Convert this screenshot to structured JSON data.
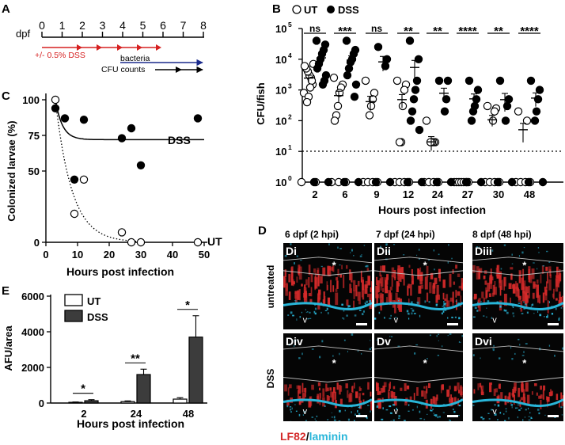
{
  "panel_a": {
    "letter": "A",
    "axis_label": "dpf",
    "ticks": [
      "0",
      "1",
      "2",
      "3",
      "4",
      "5",
      "6",
      "7",
      "8"
    ],
    "dss_label": "+/- 0.5% DSS",
    "bacteria_label": "bacteria",
    "cfu_label": "CFU counts",
    "colors": {
      "dss": "#d62020",
      "bacteria": "#1a2a8c",
      "cfu": "#000000"
    }
  },
  "panel_b": {
    "letter": "B",
    "legend_ut": "UT",
    "legend_dss": "DSS",
    "sig": [
      "ns",
      "***",
      "ns",
      "**",
      "**",
      "****",
      "**",
      "****"
    ],
    "ylabel": "CFU/fish",
    "xlabel": "Hours post infection",
    "yticks": [
      "10",
      "10",
      "10",
      "10",
      "10",
      "10"
    ],
    "yexp": [
      "0",
      "1",
      "2",
      "3",
      "4",
      "5"
    ]
  },
  "panel_c": {
    "letter": "C",
    "ylabel": "Colonized larvae (%)",
    "xlabel": "Hours post infection",
    "yticks": [
      "0",
      "50",
      "75",
      "100"
    ],
    "yticks_pos": [
      0,
      50,
      75,
      100
    ],
    "xticks": [
      "0",
      "10",
      "20",
      "30",
      "40",
      "50"
    ],
    "dss_label": "DSS",
    "ut_label": "UT"
  },
  "panel_d": {
    "letter": "D",
    "col_titles": [
      "6 dpf (2 hpi)",
      "7 dpf (24 hpi)",
      "8 dpf (48 hpi)"
    ],
    "row_labels": [
      "untreated",
      "DSS"
    ],
    "tile_labels": [
      "Di",
      "Dii",
      "Diii",
      "Div",
      "Dv",
      "Dvi"
    ],
    "caption_lf82": "LF82",
    "caption_sep": "/",
    "caption_laminin": "laminin",
    "colors": {
      "lf82": "#d42a2a",
      "laminin": "#29b6d9"
    }
  },
  "panel_e": {
    "letter": "E",
    "ylabel": "AFU/area",
    "xlabel": "Hours post infection",
    "legend_ut": "UT",
    "legend_dss": "DSS",
    "yticks": [
      "0",
      "2000",
      "4000",
      "6000"
    ],
    "sig": [
      "*",
      "**",
      "*"
    ]
  },
  "chart_data": [
    {
      "type": "scatter",
      "panel": "B",
      "categories": [
        "2",
        "6",
        "9",
        "12",
        "24",
        "27",
        "30",
        "48"
      ],
      "yscale": "log",
      "ylim": [
        1,
        100000
      ],
      "reference_line": 10,
      "series": [
        {
          "name": "UT",
          "marker": "open-circle",
          "values": [
            [
              800,
              1500,
              2500,
              3000,
              4000,
              5000,
              6000,
              7000,
              2000,
              1200,
              600,
              400,
              1,
              1
            ],
            [
              2500,
              1500,
              1200,
              800,
              300,
              150,
              100,
              1,
              1,
              1
            ],
            [
              2000,
              800,
              500,
              300,
              150,
              1,
              1,
              1,
              1
            ],
            [
              2000,
              1500,
              1000,
              300,
              20,
              20,
              1,
              1,
              1,
              1
            ],
            [
              100,
              20,
              20,
              20,
              20,
              1,
              1,
              1,
              1
            ],
            [
              1,
              1,
              1,
              1,
              1,
              1,
              1
            ],
            [
              300,
              250,
              200,
              100,
              1,
              1,
              1,
              1
            ],
            [
              200,
              100,
              1,
              1,
              1,
              1
            ]
          ]
        },
        {
          "name": "DSS",
          "marker": "filled-circle",
          "values": [
            [
              40000,
              30000,
              20000,
              15000,
              10000,
              7000,
              5000,
              3000,
              2000,
              1500,
              1,
              1
            ],
            [
              40000,
              20000,
              15000,
              10000,
              8000,
              5000,
              3000,
              1500,
              600,
              1,
              1
            ],
            [
              25000,
              10000,
              6000,
              1,
              1
            ],
            [
              40000,
              10000,
              2000,
              1000,
              500,
              200,
              100,
              50,
              1,
              1
            ],
            [
              2000,
              2000,
              500,
              200,
              1,
              1
            ],
            [
              2000,
              1000,
              500,
              300,
              200,
              100,
              1,
              1
            ],
            [
              2000,
              500,
              300,
              100,
              1,
              1
            ],
            [
              2000,
              1000,
              500,
              200,
              100,
              1,
              1
            ]
          ]
        }
      ]
    },
    {
      "type": "scatter",
      "panel": "C",
      "xlabel": "Hours post infection",
      "ylabel": "Colonized larvae (%)",
      "xlim": [
        0,
        50
      ],
      "ylim": [
        0,
        100
      ],
      "series": [
        {
          "name": "DSS",
          "marker": "filled-circle",
          "x": [
            3,
            6,
            9,
            12,
            24,
            27,
            30,
            48
          ],
          "y": [
            94,
            87,
            44,
            86,
            73,
            80,
            54,
            87
          ]
        },
        {
          "name": "UT",
          "marker": "open-circle",
          "x": [
            3,
            9,
            12,
            24,
            27,
            30,
            48
          ],
          "y": [
            100,
            20,
            44,
            7,
            0,
            0,
            0
          ]
        }
      ]
    },
    {
      "type": "bar",
      "panel": "E",
      "categories": [
        "2",
        "24",
        "48"
      ],
      "ylim": [
        0,
        6000
      ],
      "series": [
        {
          "name": "UT",
          "values": [
            40,
            80,
            220
          ],
          "errors": [
            20,
            40,
            80
          ]
        },
        {
          "name": "DSS",
          "values": [
            130,
            1600,
            3700
          ],
          "errors": [
            60,
            300,
            1200
          ]
        }
      ]
    }
  ]
}
